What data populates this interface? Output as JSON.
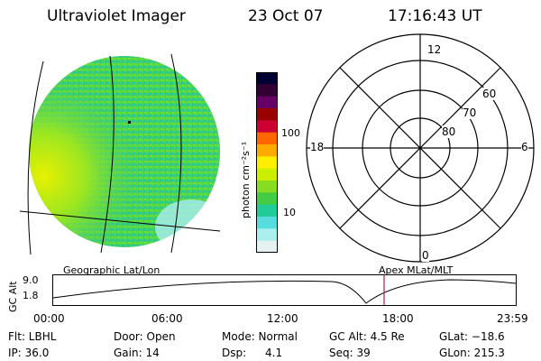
{
  "header": {
    "title": "Ultraviolet Imager",
    "date": "23 Oct 07",
    "time": "17:16:43 UT"
  },
  "imager": {
    "colors": {
      "bright": "#e8f000",
      "mid": "#66dd33",
      "low": "#22cc99",
      "faint": "#88dddd"
    }
  },
  "colorbar": {
    "unit_label": "photon cm⁻²s⁻¹",
    "ticks": [
      "100",
      "10"
    ],
    "colors": [
      "#000033",
      "#330033",
      "#660066",
      "#990000",
      "#cc0033",
      "#ff6600",
      "#ffaa00",
      "#ffee00",
      "#ccee00",
      "#88dd22",
      "#44cc44",
      "#22cc99",
      "#55dddd",
      "#aaeeee",
      "#e6f2f2"
    ]
  },
  "polar": {
    "mlt_labels": {
      "top": "12",
      "left": "18",
      "right": "6",
      "bottom": "0"
    },
    "lat_labels": [
      "60",
      "70",
      "80"
    ]
  },
  "timeline": {
    "left_title": "Geographic Lat/Lon",
    "right_title": "Apex MLat/MLT",
    "y_label": "GC Alt",
    "y_ticks": [
      "9.0",
      "1.8"
    ],
    "x_ticks": [
      "00:00",
      "06:00",
      "12:00",
      "18:00",
      "23:59"
    ],
    "marker_color": "#aa2244"
  },
  "status": {
    "filter": "Flt: LBHL",
    "ip": "IP: 36.0",
    "door": "Door: Open",
    "gain": "Gain: 14",
    "mode": "Mode: Normal",
    "dsp_label": "Dsp:",
    "dsp_value": "4.1",
    "gc_alt": "GC Alt: 4.5 Re",
    "seq": "Seq: 39",
    "glat": "GLat: −18.6",
    "glon": "GLon: 215.3"
  }
}
